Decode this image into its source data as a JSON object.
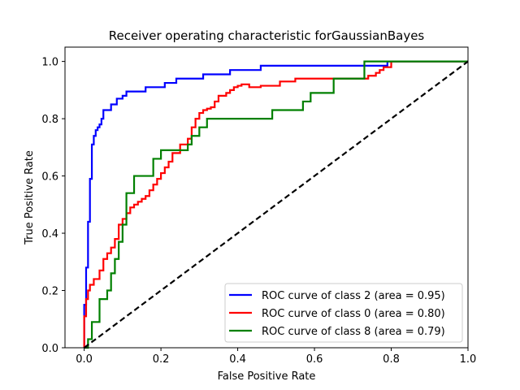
{
  "chart_data": {
    "type": "line",
    "title": "Receiver operating characteristic forGaussianBayes",
    "xlabel": "False Positive Rate",
    "ylabel": "True Positive Rate",
    "xlim": [
      -0.05,
      1.0
    ],
    "ylim": [
      0.0,
      1.05
    ],
    "xticks": [
      0.0,
      0.2,
      0.4,
      0.6,
      0.8,
      1.0
    ],
    "yticks": [
      0.0,
      0.2,
      0.4,
      0.6,
      0.8,
      1.0
    ],
    "xtick_labels": [
      "0.0",
      "0.2",
      "0.4",
      "0.6",
      "0.8",
      "1.0"
    ],
    "ytick_labels": [
      "0.0",
      "0.2",
      "0.4",
      "0.6",
      "0.8",
      "1.0"
    ],
    "grid": false,
    "legend_position": "lower-right",
    "series": [
      {
        "name": "ROC curve of class 2 (area = 0.95)",
        "color": "#0000ff",
        "style": "solid",
        "x": [
          0.0,
          0.0,
          0.005,
          0.005,
          0.01,
          0.01,
          0.015,
          0.015,
          0.02,
          0.02,
          0.025,
          0.025,
          0.03,
          0.03,
          0.035,
          0.035,
          0.04,
          0.04,
          0.045,
          0.045,
          0.05,
          0.05,
          0.07,
          0.07,
          0.085,
          0.085,
          0.1,
          0.1,
          0.11,
          0.11,
          0.16,
          0.16,
          0.21,
          0.21,
          0.24,
          0.24,
          0.31,
          0.31,
          0.38,
          0.38,
          0.46,
          0.46,
          0.59,
          0.59,
          0.79,
          0.79,
          1.0
        ],
        "y": [
          0.0,
          0.15,
          0.15,
          0.28,
          0.28,
          0.44,
          0.44,
          0.59,
          0.59,
          0.71,
          0.71,
          0.74,
          0.74,
          0.76,
          0.76,
          0.77,
          0.77,
          0.78,
          0.78,
          0.8,
          0.8,
          0.83,
          0.83,
          0.85,
          0.85,
          0.87,
          0.87,
          0.88,
          0.88,
          0.895,
          0.895,
          0.91,
          0.91,
          0.925,
          0.925,
          0.94,
          0.94,
          0.955,
          0.955,
          0.97,
          0.97,
          0.985,
          0.985,
          0.985,
          0.985,
          1.0,
          1.0
        ]
      },
      {
        "name": "ROC curve of class 0 (area = 0.80)",
        "color": "#ff0000",
        "style": "solid",
        "x": [
          0.0,
          0.0,
          0.005,
          0.005,
          0.01,
          0.01,
          0.015,
          0.015,
          0.025,
          0.025,
          0.04,
          0.04,
          0.05,
          0.05,
          0.06,
          0.06,
          0.07,
          0.07,
          0.08,
          0.08,
          0.09,
          0.09,
          0.1,
          0.1,
          0.11,
          0.11,
          0.12,
          0.12,
          0.13,
          0.13,
          0.14,
          0.14,
          0.15,
          0.15,
          0.16,
          0.16,
          0.17,
          0.17,
          0.18,
          0.18,
          0.19,
          0.19,
          0.2,
          0.2,
          0.21,
          0.21,
          0.22,
          0.22,
          0.23,
          0.23,
          0.25,
          0.25,
          0.27,
          0.27,
          0.28,
          0.28,
          0.29,
          0.29,
          0.3,
          0.3,
          0.31,
          0.31,
          0.32,
          0.32,
          0.33,
          0.33,
          0.34,
          0.34,
          0.35,
          0.35,
          0.37,
          0.37,
          0.38,
          0.38,
          0.39,
          0.39,
          0.4,
          0.4,
          0.41,
          0.41,
          0.43,
          0.43,
          0.46,
          0.46,
          0.51,
          0.51,
          0.55,
          0.55,
          0.64,
          0.64,
          0.74,
          0.74,
          0.76,
          0.76,
          0.77,
          0.77,
          0.78,
          0.78,
          0.8,
          0.8,
          1.0
        ],
        "y": [
          0.0,
          0.11,
          0.11,
          0.17,
          0.17,
          0.2,
          0.2,
          0.22,
          0.22,
          0.24,
          0.24,
          0.27,
          0.27,
          0.31,
          0.31,
          0.33,
          0.33,
          0.35,
          0.35,
          0.38,
          0.38,
          0.43,
          0.43,
          0.45,
          0.45,
          0.47,
          0.47,
          0.49,
          0.49,
          0.5,
          0.5,
          0.51,
          0.51,
          0.52,
          0.52,
          0.53,
          0.53,
          0.55,
          0.55,
          0.57,
          0.57,
          0.59,
          0.59,
          0.61,
          0.61,
          0.63,
          0.63,
          0.65,
          0.65,
          0.68,
          0.68,
          0.71,
          0.71,
          0.73,
          0.73,
          0.77,
          0.77,
          0.8,
          0.8,
          0.82,
          0.82,
          0.83,
          0.83,
          0.835,
          0.835,
          0.84,
          0.84,
          0.86,
          0.86,
          0.88,
          0.88,
          0.89,
          0.89,
          0.9,
          0.9,
          0.91,
          0.91,
          0.915,
          0.915,
          0.92,
          0.92,
          0.91,
          0.91,
          0.915,
          0.915,
          0.93,
          0.93,
          0.94,
          0.94,
          0.94,
          0.94,
          0.95,
          0.95,
          0.96,
          0.96,
          0.97,
          0.97,
          0.98,
          0.98,
          1.0,
          1.0
        ]
      },
      {
        "name": "ROC curve of class 8 (area = 0.79)",
        "color": "#008000",
        "style": "solid",
        "x": [
          0.0,
          0.01,
          0.01,
          0.02,
          0.02,
          0.04,
          0.04,
          0.06,
          0.06,
          0.07,
          0.07,
          0.08,
          0.08,
          0.09,
          0.09,
          0.1,
          0.1,
          0.11,
          0.11,
          0.13,
          0.13,
          0.18,
          0.18,
          0.2,
          0.2,
          0.27,
          0.27,
          0.28,
          0.28,
          0.3,
          0.3,
          0.32,
          0.32,
          0.49,
          0.49,
          0.57,
          0.57,
          0.59,
          0.59,
          0.65,
          0.65,
          0.73,
          0.73,
          1.0
        ],
        "y": [
          0.0,
          0.0,
          0.03,
          0.03,
          0.09,
          0.09,
          0.17,
          0.17,
          0.2,
          0.2,
          0.26,
          0.26,
          0.31,
          0.31,
          0.37,
          0.37,
          0.43,
          0.43,
          0.54,
          0.54,
          0.6,
          0.6,
          0.66,
          0.66,
          0.69,
          0.69,
          0.71,
          0.71,
          0.74,
          0.74,
          0.77,
          0.77,
          0.8,
          0.8,
          0.83,
          0.83,
          0.86,
          0.86,
          0.89,
          0.89,
          0.94,
          0.94,
          1.0,
          1.0
        ]
      },
      {
        "name": "",
        "color": "#000000",
        "style": "dashed",
        "x": [
          0.0,
          1.0
        ],
        "y": [
          0.0,
          1.0
        ]
      }
    ],
    "legend": [
      {
        "label": "ROC curve of class 2 (area = 0.95)",
        "color": "#0000ff"
      },
      {
        "label": "ROC curve of class 0 (area = 0.80)",
        "color": "#ff0000"
      },
      {
        "label": "ROC curve of class 8 (area = 0.79)",
        "color": "#008000"
      }
    ]
  }
}
